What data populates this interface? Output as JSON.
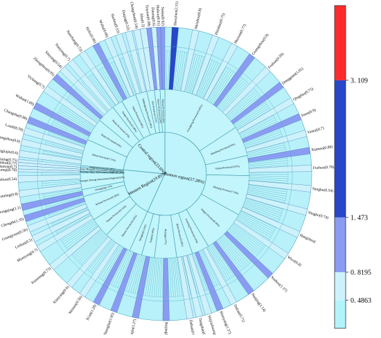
{
  "chart_data": {
    "type": "sunburst",
    "color_scale": {
      "colors": [
        "#b3f3fb",
        "#cdf2fb",
        "#8a9cf2",
        "#2747c8",
        "#ff2b2b"
      ],
      "tick_labels": [
        "0. 4863",
        "0. 8195",
        "1. 473",
        "3. 109"
      ],
      "ticks": [
        0.4863,
        0.8195,
        1.473,
        3.109
      ],
      "range": [
        0.15,
        4.0
      ]
    },
    "root": [
      {
        "name": "Eastern region(57.28%)",
        "share": 57.28,
        "children": [
          {
            "name": "Guangdong Province(15.86%)",
            "share": 15.86,
            "cities": [
              {
                "name": "Shenzhen(2.51)",
                "value": 2.51
              },
              {
                "name": "Meizhou(0.8)",
                "value": 0.8
              },
              {
                "name": "Huizhou(0.75)",
                "value": 0.75
              },
              {
                "name": "Heyuan(0.77)",
                "value": 0.77
              },
              {
                "name": "Guangzhou(0.9)",
                "value": 0.9
              },
              {
                "name": "Foshan(0.59)",
                "value": 0.59
              },
              {
                "name": "Dongguan(1.05)",
                "value": 1.05
              }
            ]
          },
          {
            "name": "Shandong Province(5.8%)",
            "share": 5.8,
            "cities": [
              {
                "name": "Qingdao(0.75)",
                "value": 0.75
              },
              {
                "name": "Jinan(0.9)",
                "value": 0.9
              },
              {
                "name": "Yantai(0.7)",
                "value": 0.7
              }
            ]
          },
          {
            "name": "Fujian Province(3.87%)",
            "share": 3.87,
            "cities": [
              {
                "name": "Xiamen(0.89)",
                "value": 0.89
              },
              {
                "name": "Fuzhou(0.79)",
                "value": 0.79
              }
            ]
          },
          {
            "name": "Zhejiang Province(7.78%)",
            "share": 7.78,
            "cities": [
              {
                "name": "Ningbo(0.54)",
                "value": 0.54
              },
              {
                "name": "Ningbo(0.74)",
                "value": 0.74
              },
              {
                "name": "Hangzhou(",
                "value": 0.7
              }
            ]
          },
          {
            "name": "Jiangsu Province(8.38%)",
            "share": 8.38,
            "cities": [
              {
                "name": "Wuxi(0.8)",
                "value": 0.8
              },
              {
                "name": "Suzhou(1.37)",
                "value": 1.37
              },
              {
                "name": "Nanjing(1.14)",
                "value": 1.14
              }
            ]
          },
          {
            "name": "Liaoning Province(3.33%)",
            "share": 3.33,
            "cities": [
              {
                "name": "Dalian(0.71)",
                "value": 0.71
              },
              {
                "name": "Shenyang(1.37)",
                "value": 1.37
              }
            ]
          },
          {
            "name": "Hebei Province(3.08%)",
            "share": 3.08,
            "cities": [
              {
                "name": "Shijiazhuang(0.66)",
                "value": 0.66
              },
              {
                "name": "Tangshan(0.66)",
                "value": 0.66
              },
              {
                "name": "Dalian(0.61)",
                "value": 0.61
              }
            ]
          },
          {
            "name": "Beijing(4.27%)",
            "share": 4.27,
            "cities": [
              {
                "name": "Beijing(1.14)",
                "value": 1.14
              }
            ]
          },
          {
            "name": "Tianjin(2.48%)",
            "share": 2.48,
            "cities": [
              {
                "name": "Tianjin(1.27)",
                "value": 1.27
              }
            ]
          },
          {
            "name": "Shanghai(2.43%)",
            "share": 2.43,
            "cities": [
              {
                "name": "Shanghai(1.05)",
                "value": 1.05
              }
            ]
          }
        ]
      },
      {
        "name": "Western Region(19.85%)",
        "share": 19.85,
        "children": [
          {
            "name": "Shaanxi Province(5.92%)",
            "share": 5.92,
            "cities": [
              {
                "name": "Xi'an(1.28)",
                "value": 1.28
              },
              {
                "name": "Weinan(0.56)",
                "value": 0.56
              },
              {
                "name": "Xianyang(0.6)",
                "value": 0.6
              }
            ]
          },
          {
            "name": "Yunnan Province(4.16%)",
            "share": 4.16,
            "cities": [
              {
                "name": "Kunming(0.73)",
                "value": 0.73
              }
            ]
          },
          {
            "name": "Sichuan Province(5.36%)",
            "share": 5.36,
            "cities": [
              {
                "name": "Mianyang(0.7)",
                "value": 0.7
              },
              {
                "name": "Leshan(0.5)",
                "value": 0.5
              },
              {
                "name": "Guangyuan(0.56)",
                "value": 0.56
              },
              {
                "name": "Chengdu(1.35)",
                "value": 1.35
              }
            ]
          },
          {
            "name": "Chongqing(1.5%)",
            "share": 1.5,
            "cities": [
              {
                "name": "Chongqing(1.1)",
                "value": 1.1
              }
            ]
          },
          {
            "name": "Guangxi Zhuang Autonomous Region(3.6%)",
            "share": 3.6,
            "cities": [
              {
                "name": "Nanning(0.8)",
                "value": 0.8
              },
              {
                "name": "Qinzhou(0.54)",
                "value": 0.54
              }
            ]
          },
          {
            "name": "Xinjiang Uygur Autonomous Region(0.34%)",
            "share": 0.34,
            "cities": [
              {
                "name": "Urumqi(0.78)",
                "value": 0.78
              }
            ]
          },
          {
            "name": "Inner Mongolia Autonomous Region(0.8%)",
            "share": 0.8,
            "cities": [
              {
                "name": "Baotou(0.7)",
                "value": 0.7
              },
              {
                "name": "Hohhot(0.77)",
                "value": 0.77
              }
            ]
          },
          {
            "name": "Qinghai Province(0.36%)",
            "share": 0.36,
            "cities": [
              {
                "name": "Xining(0.75)",
                "value": 0.75
              }
            ]
          }
        ]
      },
      {
        "name": "Central region(23.6%)",
        "share": 23.6,
        "children": [
          {
            "name": "Hunan Province(7.72%)",
            "share": 7.72,
            "cities": [
              {
                "name": "Zhangjiajie(0.6)",
                "value": 0.6
              },
              {
                "name": "Yongzhou(0.6)",
                "value": 0.6
              },
              {
                "name": "Loudi(0.59)",
                "value": 0.59
              },
              {
                "name": "Changsha(0.98)",
                "value": 0.98
              }
            ]
          },
          {
            "name": "Hubei Province(6.56%)",
            "share": 6.56,
            "cities": [
              {
                "name": "Wuhan(1.09)",
                "value": 1.09
              },
              {
                "name": "Yichang(0.7)",
                "value": 0.7
              }
            ]
          },
          {
            "name": "Henan Province(5.37%)",
            "share": 5.37,
            "cities": [
              {
                "name": "Zhengzhou(0.95)",
                "value": 0.95
              },
              {
                "name": "Xinyang(0.54)",
                "value": 0.54
              },
              {
                "name": "Nanyang(0.7)",
                "value": 0.7
              }
            ]
          },
          {
            "name": "Jiangxi Province(3.09%)",
            "share": 3.09,
            "cities": [
              {
                "name": "Nanchang(0.73)",
                "value": 0.73
              }
            ]
          },
          {
            "name": "Anhui Province(4.38%)",
            "share": 4.38,
            "cities": [
              {
                "name": "Hefei(0.96)",
                "value": 0.96
              },
              {
                "name": "Wuhu(0.66)",
                "value": 0.66
              }
            ]
          },
          {
            "name": "Heilongjiang Province(3.38%)",
            "share": 3.38,
            "cities": [
              {
                "name": "Harbin(0.53)",
                "value": 0.53
              },
              {
                "name": "Daqing(0.52)",
                "value": 0.52
              }
            ]
          },
          {
            "name": "Jilin Province(2.21%)",
            "share": 2.21,
            "cities": [
              {
                "name": "Changchun(0.54)",
                "value": 0.54
              },
              {
                "name": "Jilin(0.5)",
                "value": 0.5
              }
            ]
          },
          {
            "name": "Shanxi Province(1.62%)",
            "share": 1.62,
            "cities": [
              {
                "name": "Taiyuan(0.98)",
                "value": 0.98
              },
              {
                "name": "Datong(0.6)",
                "value": 0.6
              }
            ]
          },
          {
            "name": "Hainan Province(1.4%)",
            "share": 1.4,
            "cities": [
              {
                "name": "Haikou(0.91)",
                "value": 0.91
              },
              {
                "name": "Sanya(0.92)",
                "value": 0.92
              }
            ]
          }
        ]
      }
    ]
  }
}
